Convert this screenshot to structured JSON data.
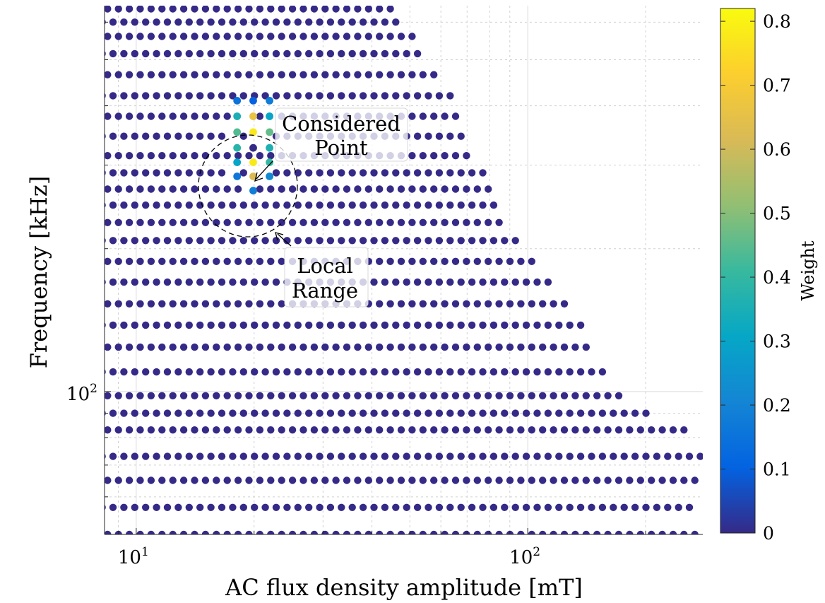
{
  "chart_data": {
    "type": "scatter",
    "xlabel": "AC flux density amplitude [mT]",
    "ylabel": "Frequency [kHz]",
    "xscale": "log",
    "yscale": "log",
    "xlim": [
      8.3,
      280
    ],
    "ylim": [
      50,
      650
    ],
    "grid": true,
    "x_ticks": [
      {
        "value": 10,
        "base": "10",
        "exp": "1"
      },
      {
        "value": 100,
        "base": "10",
        "exp": "2"
      }
    ],
    "y_ticks": [
      {
        "value": 100,
        "base": "10",
        "exp": "2"
      }
    ],
    "colorbar": {
      "label": "Weight",
      "range": [
        0,
        0.82
      ],
      "ticks": [
        "0",
        "0.1",
        "0.2",
        "0.3",
        "0.4",
        "0.5",
        "0.6",
        "0.7",
        "0.8"
      ]
    },
    "frequency_levels": [
      50,
      57,
      65,
      73,
      83,
      90,
      98,
      110,
      124,
      138,
      153,
      170,
      188,
      208,
      227,
      247,
      267,
      289,
      314,
      345,
      380,
      420,
      465,
      515,
      560,
      600,
      640
    ],
    "frequency_xmax": [
      278,
      273,
      280,
      276,
      266,
      205,
      180,
      162,
      150,
      137,
      128,
      118,
      108,
      96,
      90,
      86,
      81,
      78,
      74,
      70,
      68,
      65,
      60,
      55,
      52,
      48,
      45
    ],
    "points_per_decade_B": 36,
    "highlighted_points": [
      {
        "B": 18.1,
        "f": 410,
        "w": 0.15
      },
      {
        "B": 18.1,
        "f": 380,
        "w": 0.35
      },
      {
        "B": 18.1,
        "f": 352,
        "w": 0.44
      },
      {
        "B": 18.1,
        "f": 326,
        "w": 0.38
      },
      {
        "B": 18.1,
        "f": 304,
        "w": 0.3
      },
      {
        "B": 18.1,
        "f": 284,
        "w": 0.16
      },
      {
        "B": 19.9,
        "f": 410,
        "w": 0.1
      },
      {
        "B": 19.9,
        "f": 380,
        "w": 0.66
      },
      {
        "B": 19.9,
        "f": 352,
        "w": 0.78
      },
      {
        "B": 19.9,
        "f": 326,
        "w": 0.0
      },
      {
        "B": 19.9,
        "f": 304,
        "w": 0.78
      },
      {
        "B": 19.9,
        "f": 284,
        "w": 0.62
      },
      {
        "B": 19.9,
        "f": 265,
        "w": 0.18
      },
      {
        "B": 21.9,
        "f": 410,
        "w": 0.18
      },
      {
        "B": 21.9,
        "f": 380,
        "w": 0.3
      },
      {
        "B": 21.9,
        "f": 352,
        "w": 0.46
      },
      {
        "B": 21.9,
        "f": 326,
        "w": 0.36
      },
      {
        "B": 21.9,
        "f": 304,
        "w": 0.4
      },
      {
        "B": 21.9,
        "f": 284,
        "w": 0.22
      }
    ],
    "annotations": [
      {
        "label": "Considered Point",
        "lines": [
          "Considered",
          "Point"
        ]
      },
      {
        "label": "Local Range",
        "lines": [
          "Local",
          "Range"
        ]
      }
    ]
  }
}
